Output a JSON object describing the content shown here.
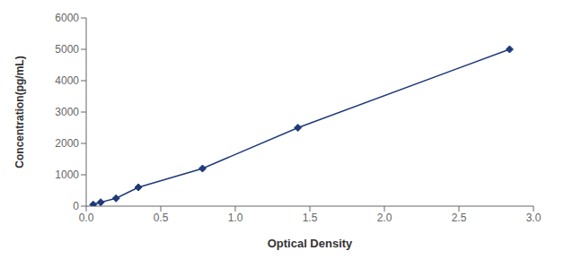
{
  "chart_data": {
    "type": "line",
    "x": [
      0.047,
      0.097,
      0.2,
      0.35,
      0.78,
      1.42,
      2.84
    ],
    "values": [
      50,
      125,
      250,
      600,
      1200,
      2500,
      5000
    ],
    "color": "#1F3A7A",
    "marker": "diamond",
    "line_style": "solid",
    "xlabel": "Optical Density",
    "ylabel": "Concentration(pg/mL)",
    "xlim": [
      0,
      3.0
    ],
    "ylim": [
      0,
      6000
    ],
    "xticks": [
      {
        "value": 0,
        "label": "0.0"
      },
      0.5,
      {
        "value": 1,
        "label": "1.0"
      },
      1.5,
      {
        "value": 2,
        "label": "2.0"
      },
      2.5,
      {
        "value": 3,
        "label": "3.0"
      }
    ],
    "yticks": [
      0,
      1000,
      2000,
      3000,
      4000,
      5000,
      6000
    ]
  }
}
